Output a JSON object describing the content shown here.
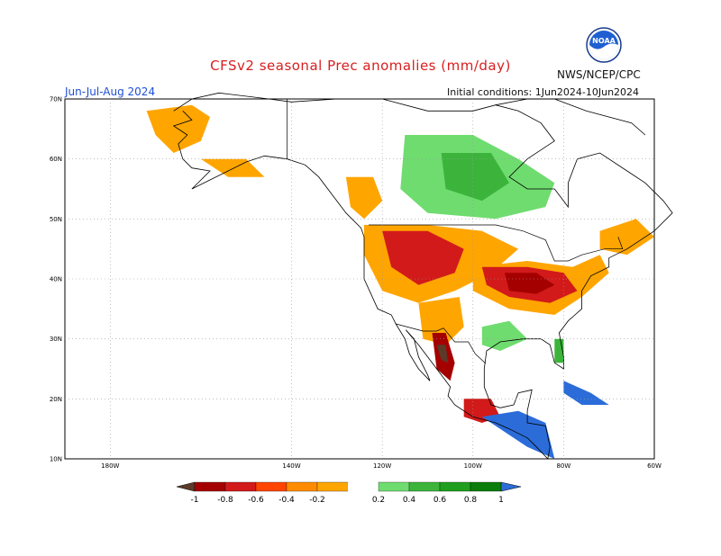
{
  "title": "CFSv2 seasonal Prec anomalies (mm/day)",
  "period": "Jun-Jul-Aug 2024",
  "initial_conditions": "Initial conditions: 1Jun2024-10Jun2024",
  "agency": "NWS/NCEP/CPC",
  "logo_text": "NOAA",
  "map": {
    "lon_range": [
      -190,
      -60
    ],
    "lat_range": [
      10,
      70
    ],
    "lat_labels": [
      "70N",
      "60N",
      "50N",
      "40N",
      "30N",
      "20N",
      "10N"
    ],
    "lon_labels": [
      "180W",
      "140W",
      "120W",
      "100W",
      "80W",
      "60W"
    ],
    "grid": true
  },
  "colorbar": {
    "labels": [
      "-1",
      "-0.8",
      "-0.6",
      "-0.4",
      "-0.2",
      "0.2",
      "0.4",
      "0.6",
      "0.8",
      "1"
    ],
    "colors": [
      "#5b3a29",
      "#a50000",
      "#d21a1a",
      "#ff4500",
      "#ff8c00",
      "#ffa500",
      "#ffffff",
      "#6fdc6f",
      "#3cb43c",
      "#1f9e1f",
      "#0a7d0a",
      "#2b6cd9"
    ]
  },
  "anomaly_regions": [
    {
      "name": "alaska-west-dry",
      "color": "#ffa500",
      "points": [
        [
          -172,
          68
        ],
        [
          -162,
          69
        ],
        [
          -158,
          67
        ],
        [
          -160,
          63
        ],
        [
          -166,
          61
        ],
        [
          -170,
          64
        ]
      ]
    },
    {
      "name": "alaska-south-dry",
      "color": "#ffa500",
      "points": [
        [
          -160,
          60
        ],
        [
          -150,
          60
        ],
        [
          -146,
          57
        ],
        [
          -154,
          57
        ]
      ]
    },
    {
      "name": "west-canada-dry",
      "color": "#ffa500",
      "points": [
        [
          -128,
          57
        ],
        [
          -122,
          57
        ],
        [
          -120,
          53
        ],
        [
          -124,
          50
        ],
        [
          -127,
          52
        ]
      ]
    },
    {
      "name": "canada-wet",
      "color": "#6fdc6f",
      "points": [
        [
          -115,
          64
        ],
        [
          -100,
          64
        ],
        [
          -90,
          60
        ],
        [
          -82,
          56
        ],
        [
          -84,
          52
        ],
        [
          -95,
          50
        ],
        [
          -110,
          51
        ],
        [
          -116,
          55
        ]
      ]
    },
    {
      "name": "canada-wet-core",
      "color": "#3cb43c",
      "points": [
        [
          -107,
          61
        ],
        [
          -96,
          61
        ],
        [
          -92,
          56
        ],
        [
          -98,
          53
        ],
        [
          -106,
          55
        ]
      ]
    },
    {
      "name": "northern-plains-dry",
      "color": "#ffa500",
      "points": [
        [
          -124,
          49
        ],
        [
          -110,
          49
        ],
        [
          -98,
          48
        ],
        [
          -90,
          45
        ],
        [
          -96,
          41
        ],
        [
          -104,
          38
        ],
        [
          -112,
          36
        ],
        [
          -120,
          38
        ],
        [
          -124,
          44
        ]
      ]
    },
    {
      "name": "great-basin-very-dry",
      "color": "#d21a1a",
      "points": [
        [
          -120,
          48
        ],
        [
          -110,
          48
        ],
        [
          -102,
          45
        ],
        [
          -104,
          41
        ],
        [
          -112,
          39
        ],
        [
          -118,
          42
        ]
      ]
    },
    {
      "name": "midwest-dry",
      "color": "#ffa500",
      "points": [
        [
          -100,
          42
        ],
        [
          -88,
          43
        ],
        [
          -78,
          42
        ],
        [
          -72,
          44
        ],
        [
          -70,
          41
        ],
        [
          -76,
          37
        ],
        [
          -82,
          34
        ],
        [
          -92,
          35
        ],
        [
          -100,
          38
        ]
      ]
    },
    {
      "name": "ohio-valley-very-dry",
      "color": "#d21a1a",
      "points": [
        [
          -98,
          42
        ],
        [
          -88,
          42
        ],
        [
          -80,
          41
        ],
        [
          -77,
          38
        ],
        [
          -83,
          36
        ],
        [
          -92,
          37
        ],
        [
          -97,
          39
        ]
      ]
    },
    {
      "name": "ohio-valley-core",
      "color": "#a50000",
      "points": [
        [
          -93,
          41
        ],
        [
          -86,
          41
        ],
        [
          -82,
          39
        ],
        [
          -86,
          37.5
        ],
        [
          -92,
          38
        ]
      ]
    },
    {
      "name": "southwest-dry",
      "color": "#ffa500",
      "points": [
        [
          -112,
          36
        ],
        [
          -103,
          37
        ],
        [
          -102,
          32
        ],
        [
          -106,
          29
        ],
        [
          -111,
          30
        ]
      ]
    },
    {
      "name": "sierra-madre-very-dry",
      "color": "#a50000",
      "points": [
        [
          -109,
          31
        ],
        [
          -106,
          31
        ],
        [
          -104,
          26
        ],
        [
          -105,
          23
        ],
        [
          -108,
          25
        ]
      ]
    },
    {
      "name": "sierra-madre-extreme",
      "color": "#5b3a29",
      "points": [
        [
          -108,
          29
        ],
        [
          -106,
          29
        ],
        [
          -105.5,
          26
        ],
        [
          -107,
          26.5
        ]
      ]
    },
    {
      "name": "gulf-coast-wet",
      "color": "#6fdc6f",
      "points": [
        [
          -98,
          32
        ],
        [
          -92,
          33
        ],
        [
          -88,
          30
        ],
        [
          -94,
          28
        ],
        [
          -98,
          29
        ]
      ]
    },
    {
      "name": "florida-wet",
      "color": "#3cb43c",
      "points": [
        [
          -82,
          30
        ],
        [
          -80,
          30
        ],
        [
          -80,
          26
        ],
        [
          -82,
          26
        ]
      ]
    },
    {
      "name": "southern-mexico-dry",
      "color": "#d21a1a",
      "points": [
        [
          -102,
          20
        ],
        [
          -96,
          20
        ],
        [
          -94,
          17
        ],
        [
          -98,
          16
        ],
        [
          -102,
          17
        ]
      ]
    },
    {
      "name": "central-america-wet",
      "color": "#2b6cd9",
      "points": [
        [
          -98,
          17
        ],
        [
          -90,
          18
        ],
        [
          -84,
          16
        ],
        [
          -82,
          10
        ],
        [
          -88,
          12
        ],
        [
          -94,
          15
        ]
      ]
    },
    {
      "name": "caribbean-wet",
      "color": "#2b6cd9",
      "points": [
        [
          -80,
          23
        ],
        [
          -74,
          21
        ],
        [
          -70,
          19
        ],
        [
          -76,
          19
        ],
        [
          -80,
          21
        ]
      ]
    },
    {
      "name": "quebec-dry",
      "color": "#ffa500",
      "points": [
        [
          -72,
          48
        ],
        [
          -64,
          50
        ],
        [
          -60,
          47
        ],
        [
          -66,
          44
        ],
        [
          -72,
          45
        ]
      ]
    }
  ],
  "coastlines": [
    {
      "name": "north-america-coast",
      "points": [
        [
          -166,
          68
        ],
        [
          -162,
          70
        ],
        [
          -156,
          71
        ],
        [
          -145,
          70
        ],
        [
          -140,
          69.5
        ],
        [
          -130,
          70
        ],
        [
          -120,
          70
        ],
        [
          -110,
          68
        ],
        [
          -100,
          68
        ],
        [
          -95,
          69
        ],
        [
          -90,
          68
        ],
        [
          -85,
          66
        ],
        [
          -82,
          63
        ],
        [
          -88,
          60
        ],
        [
          -92,
          57
        ],
        [
          -88,
          55
        ],
        [
          -82,
          55
        ],
        [
          -79,
          52
        ],
        [
          -79,
          56
        ],
        [
          -77,
          60
        ],
        [
          -72,
          61
        ],
        [
          -66,
          58
        ],
        [
          -62,
          56
        ],
        [
          -58,
          53
        ],
        [
          -56,
          51
        ],
        [
          -60,
          48
        ],
        [
          -66,
          45
        ],
        [
          -70,
          43.5
        ],
        [
          -70,
          42
        ],
        [
          -74,
          40.5
        ],
        [
          -76,
          38
        ],
        [
          -76,
          35
        ],
        [
          -79,
          33
        ],
        [
          -81,
          31
        ],
        [
          -80,
          27
        ],
        [
          -80,
          25
        ],
        [
          -82,
          26
        ],
        [
          -83,
          29
        ],
        [
          -85,
          30
        ],
        [
          -89,
          30
        ],
        [
          -94,
          29.5
        ],
        [
          -97,
          28
        ],
        [
          -97.5,
          25
        ],
        [
          -97.5,
          22
        ],
        [
          -96,
          19
        ],
        [
          -94,
          18.5
        ],
        [
          -91,
          19
        ],
        [
          -90,
          21
        ],
        [
          -87,
          21.5
        ],
        [
          -88,
          18
        ],
        [
          -88,
          16
        ],
        [
          -84,
          15.5
        ],
        [
          -83,
          12
        ],
        [
          -83.5,
          10
        ]
      ]
    },
    {
      "name": "pacific-coast",
      "points": [
        [
          -83.5,
          10
        ],
        [
          -86,
          12
        ],
        [
          -88,
          13.5
        ],
        [
          -92,
          15
        ],
        [
          -95,
          16
        ],
        [
          -100,
          17
        ],
        [
          -104,
          19
        ],
        [
          -105.5,
          20.5
        ],
        [
          -105,
          22
        ],
        [
          -106,
          23
        ],
        [
          -109,
          26
        ],
        [
          -112,
          29
        ],
        [
          -114.8,
          31.5
        ],
        [
          -113,
          30
        ],
        [
          -112,
          27
        ],
        [
          -110,
          24
        ],
        [
          -109.5,
          23
        ],
        [
          -112,
          25
        ],
        [
          -114,
          27.5
        ],
        [
          -115,
          30
        ],
        [
          -117,
          32.5
        ],
        [
          -118,
          34
        ],
        [
          -121,
          35
        ],
        [
          -122.5,
          37.5
        ],
        [
          -124,
          40
        ],
        [
          -124,
          43
        ],
        [
          -124,
          47
        ],
        [
          -124.7,
          48.5
        ],
        [
          -128,
          51
        ],
        [
          -131,
          54
        ],
        [
          -134,
          57
        ],
        [
          -137,
          59
        ],
        [
          -141,
          60
        ],
        [
          -146,
          60.5
        ],
        [
          -150,
          59.5
        ],
        [
          -154,
          58
        ],
        [
          -158,
          56.5
        ],
        [
          -162,
          55
        ],
        [
          -158,
          58
        ],
        [
          -162,
          58.5
        ],
        [
          -164,
          60
        ],
        [
          -165,
          62.5
        ],
        [
          -163,
          64
        ],
        [
          -166,
          65.5
        ],
        [
          -162,
          66.5
        ],
        [
          -164,
          68
        ]
      ]
    },
    {
      "name": "hudson-bay-north",
      "points": [
        [
          -95,
          69
        ],
        [
          -88,
          70
        ],
        [
          -82,
          70
        ],
        [
          -75,
          68
        ],
        [
          -65,
          66
        ],
        [
          -62,
          64
        ]
      ]
    }
  ],
  "borders": [
    {
      "name": "us-canada-border",
      "points": [
        [
          -123,
          49
        ],
        [
          -95,
          49
        ],
        [
          -89,
          48
        ],
        [
          -84,
          46.5
        ],
        [
          -82,
          43
        ],
        [
          -79,
          43
        ],
        [
          -76,
          44
        ],
        [
          -71,
          45
        ],
        [
          -67,
          45
        ],
        [
          -68,
          47
        ]
      ]
    },
    {
      "name": "alaska-border",
      "points": [
        [
          -141,
          60
        ],
        [
          -141,
          70
        ]
      ]
    },
    {
      "name": "us-mexico-border",
      "points": [
        [
          -117,
          32.5
        ],
        [
          -111,
          31.3
        ],
        [
          -108,
          31.3
        ],
        [
          -106.5,
          31.8
        ],
        [
          -104,
          29.5
        ],
        [
          -101,
          29.5
        ],
        [
          -99.5,
          27.5
        ],
        [
          -97.2,
          25.9
        ]
      ]
    }
  ]
}
